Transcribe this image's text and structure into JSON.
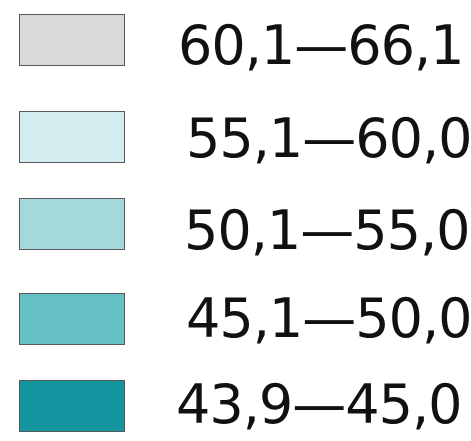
{
  "legend": {
    "items": [
      {
        "label": "60,1—66,1",
        "color": "#d9d9d9"
      },
      {
        "label": "55,1—60,0",
        "color": "#d3ecef"
      },
      {
        "label": "50,1—55,0",
        "color": "#a1d9dc"
      },
      {
        "label": "45,1—50,0",
        "color": "#65c1c6"
      },
      {
        "label": "43,9—45,0",
        "color": "#12959e"
      }
    ]
  }
}
